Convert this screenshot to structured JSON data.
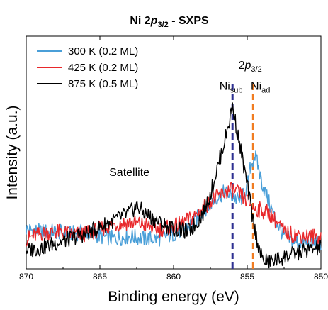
{
  "chart_data": {
    "type": "line",
    "title": {
      "pre": "Ni 2",
      "italic": "p",
      "sub": "3/2",
      "post": " - SXPS"
    },
    "xlabel": "Binding energy (eV)",
    "ylabel": "Intensity (a.u.)",
    "xlim": [
      870,
      850
    ],
    "x_reversed": true,
    "xticks": [
      870,
      865,
      860,
      855,
      850
    ],
    "xtick_labels": [
      "870",
      "865",
      "860",
      "855",
      "850"
    ],
    "ylim": [
      0,
      1
    ],
    "yticks_shown": false,
    "grid": false,
    "legend_position": "top-left",
    "series": [
      {
        "name": "300 K (0.2 ML)",
        "color": "#4a9fd8",
        "x": [
          870,
          869,
          868,
          867,
          866,
          865,
          864,
          863,
          862,
          861,
          860,
          859,
          858.5,
          858,
          857.5,
          857,
          856.5,
          856,
          855.5,
          855,
          854.8,
          854.5,
          854.3,
          854,
          853.5,
          853,
          852.5,
          852,
          851,
          850
        ],
        "y": [
          0.17,
          0.16,
          0.16,
          0.15,
          0.16,
          0.14,
          0.13,
          0.14,
          0.13,
          0.13,
          0.15,
          0.18,
          0.21,
          0.25,
          0.28,
          0.31,
          0.33,
          0.31,
          0.29,
          0.35,
          0.43,
          0.49,
          0.45,
          0.37,
          0.28,
          0.2,
          0.14,
          0.12,
          0.11,
          0.11
        ]
      },
      {
        "name": "425 K (0.2 ML)",
        "color": "#e8282b",
        "x": [
          870,
          869,
          868,
          867,
          866,
          865,
          864,
          863,
          862,
          861,
          860,
          859,
          858.5,
          858,
          857.5,
          857,
          856.5,
          856,
          855.5,
          855,
          854.5,
          854,
          853.5,
          853,
          852.5,
          852,
          851,
          850
        ],
        "y": [
          0.13,
          0.15,
          0.16,
          0.15,
          0.15,
          0.17,
          0.19,
          0.2,
          0.19,
          0.17,
          0.18,
          0.21,
          0.23,
          0.26,
          0.29,
          0.31,
          0.33,
          0.34,
          0.32,
          0.29,
          0.26,
          0.25,
          0.24,
          0.2,
          0.16,
          0.15,
          0.14,
          0.14
        ]
      },
      {
        "name": "875 K (0.5 ML)",
        "color": "#000000",
        "x": [
          870,
          869,
          868,
          867,
          866,
          865,
          864,
          863,
          862.5,
          862,
          861,
          860,
          859,
          858.5,
          858,
          857.5,
          857,
          856.5,
          856.2,
          856,
          855.8,
          855.5,
          855,
          854.5,
          854,
          853.5,
          853,
          852,
          851,
          850
        ],
        "y": [
          0.08,
          0.09,
          0.11,
          0.13,
          0.15,
          0.18,
          0.21,
          0.24,
          0.27,
          0.24,
          0.2,
          0.17,
          0.16,
          0.19,
          0.24,
          0.32,
          0.44,
          0.56,
          0.64,
          0.7,
          0.63,
          0.53,
          0.36,
          0.17,
          0.04,
          0.03,
          0.04,
          0.06,
          0.08,
          0.09
        ]
      }
    ],
    "annotations": [
      {
        "text": "Satellite",
        "x": 863,
        "y": 0.4,
        "color": "#000000"
      },
      {
        "pre": "2",
        "italic": "p",
        "sub": "3/2",
        "x": 854.8,
        "y": 0.86,
        "color": "#000000"
      },
      {
        "main": "Ni",
        "sub": "sub",
        "x": 856.1,
        "y": 0.77,
        "color": "#2e3192"
      },
      {
        "main": "Ni",
        "sub": "ad",
        "x": 854.1,
        "y": 0.77,
        "color": "#f07c22"
      }
    ],
    "vlines": [
      {
        "x": 856.0,
        "color": "#2e3192",
        "style": "dashed"
      },
      {
        "x": 854.6,
        "color": "#f07c22",
        "style": "dashed"
      }
    ]
  }
}
